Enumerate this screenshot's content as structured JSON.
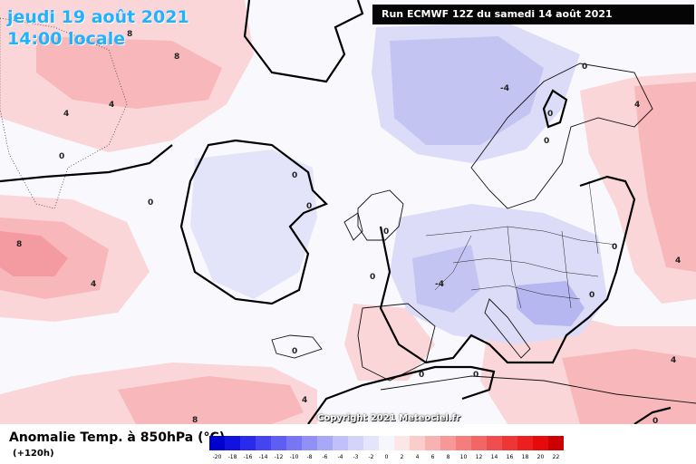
{
  "header": {
    "date": "jeudi 19 août 2021",
    "time": "14:00 locale",
    "run": "Run ECMWF 12Z du samedi 14 août 2021"
  },
  "copyright": "Copyright 2021 Meteociel.fr",
  "legend": {
    "title": "Anomalie Temp. à 850hPa (°C)",
    "lead": "(+120h)",
    "steps": [
      {
        "v": "-20",
        "c": "#0000cc"
      },
      {
        "v": "-18",
        "c": "#1212e0"
      },
      {
        "v": "-16",
        "c": "#2a2aec"
      },
      {
        "v": "-14",
        "c": "#4444f0"
      },
      {
        "v": "-12",
        "c": "#5e5ef2"
      },
      {
        "v": "-10",
        "c": "#7777f4"
      },
      {
        "v": "-8",
        "c": "#9090f6"
      },
      {
        "v": "-6",
        "c": "#a8a8f8"
      },
      {
        "v": "-4",
        "c": "#c0c0fa"
      },
      {
        "v": "-3",
        "c": "#d4d4fb"
      },
      {
        "v": "-2",
        "c": "#e4e4fc"
      },
      {
        "v": "0",
        "c": "#f6f6fe"
      },
      {
        "v": "2",
        "c": "#fde6e6"
      },
      {
        "v": "4",
        "c": "#fbcccc"
      },
      {
        "v": "6",
        "c": "#f9b2b2"
      },
      {
        "v": "8",
        "c": "#f79898"
      },
      {
        "v": "10",
        "c": "#f47e7e"
      },
      {
        "v": "12",
        "c": "#f26666"
      },
      {
        "v": "14",
        "c": "#f04e4e"
      },
      {
        "v": "16",
        "c": "#ee3636"
      },
      {
        "v": "18",
        "c": "#ec1e1e"
      },
      {
        "v": "20",
        "c": "#e60a0a"
      },
      {
        "v": "22",
        "c": "#cc0000"
      }
    ]
  },
  "contour_labels": [
    "8",
    "4",
    "4",
    "8",
    "8",
    "0",
    "0",
    "0",
    "0",
    "0",
    "0",
    "0",
    "0",
    "0",
    "0",
    "-4",
    "-4",
    "0",
    "0",
    "0",
    "0",
    "4",
    "4",
    "8",
    "4",
    "0",
    "4",
    "4"
  ]
}
